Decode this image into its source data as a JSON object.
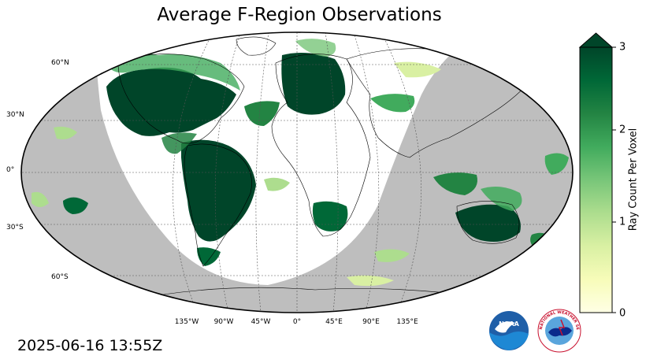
{
  "title": "Average F-Region Observations",
  "timestamp": "2025-06-16 13:55Z",
  "map": {
    "projection": "Robinson",
    "night_shading_color": "#bebebe",
    "gridlines": "dashed",
    "lat_labels": [
      "60°N",
      "30°N",
      "0°",
      "30°S",
      "60°S"
    ],
    "lon_labels": [
      "135°W",
      "90°W",
      "45°W",
      "0°",
      "45°E",
      "90°E",
      "135°E"
    ]
  },
  "colorbar": {
    "label": "Ray Count Per Voxel",
    "ticks": [
      "0",
      "1",
      "2",
      "3"
    ],
    "min": 0,
    "max": 3,
    "extend": "max",
    "colormap": "YlGn",
    "colors": [
      "#ffffe5",
      "#f7fcb9",
      "#d9f0a3",
      "#addd8e",
      "#78c679",
      "#41ab5d",
      "#238443",
      "#006837",
      "#004529"
    ]
  },
  "logos": {
    "noaa": "NOAA",
    "nws": "NATIONAL WEATHER SERVICE"
  }
}
